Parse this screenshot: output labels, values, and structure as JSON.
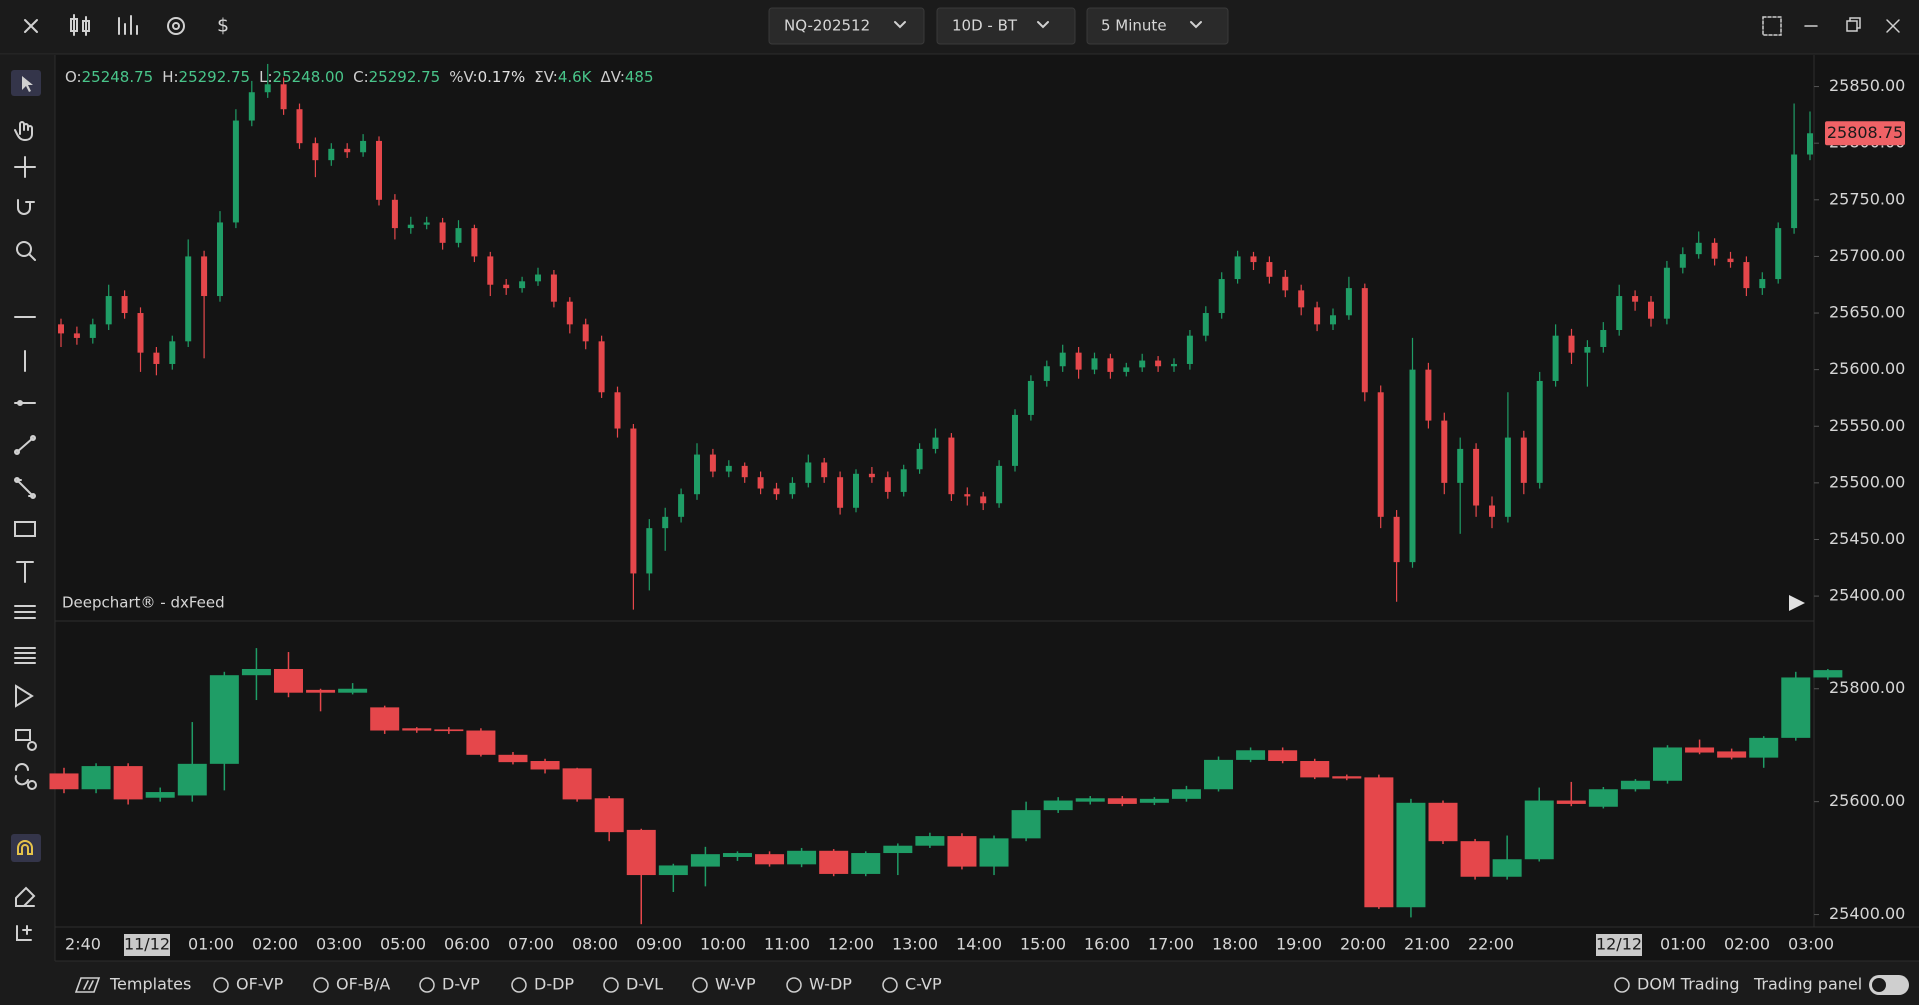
{
  "top_bar": {
    "dollar_icon": "$",
    "instrument": "NQ-202512",
    "range": "10D - BT",
    "interval": "5 Minute"
  },
  "legend_line": [
    {
      "label": "O:",
      "value": "25248.75"
    },
    {
      "label": "H:",
      "value": "25292.75"
    },
    {
      "label": "L:",
      "value": "25248.00"
    },
    {
      "label": "C:",
      "value": "25292.75"
    },
    {
      "label": "%V:",
      "value": "0.17%"
    },
    {
      "label": "ΣV:",
      "value": "4.6K"
    },
    {
      "label": "ΔV:",
      "value": "485"
    }
  ],
  "watermark": "Deepchart® - dxFeed",
  "chart_data": [
    {
      "type": "candlestick",
      "up_color": "#1f9d66",
      "down_color": "#e5474b",
      "ylim": [
        25378,
        25877
      ],
      "yticks": [
        {
          "value": 25400,
          "label": "25400.00"
        },
        {
          "value": 25450,
          "label": "25450.00"
        },
        {
          "value": 25500,
          "label": "25500.00"
        },
        {
          "value": 25550,
          "label": "25550.00"
        },
        {
          "value": 25600,
          "label": "25600.00"
        },
        {
          "value": 25650,
          "label": "25650.00"
        },
        {
          "value": 25700,
          "label": "25700.00"
        },
        {
          "value": 25750,
          "label": "25750.00"
        },
        {
          "value": 25800,
          "label": "25800.00"
        },
        {
          "value": 25850,
          "label": "25850.00"
        }
      ],
      "last_price": {
        "value": 25808.75,
        "label": "25808.75"
      },
      "candles": [
        [
          25640,
          25645,
          25620,
          25632
        ],
        [
          25632,
          25638,
          25622,
          25628
        ],
        [
          25628,
          25645,
          25623,
          25640
        ],
        [
          25640,
          25675,
          25635,
          25665
        ],
        [
          25665,
          25670,
          25645,
          25650
        ],
        [
          25650,
          25655,
          25598,
          25615
        ],
        [
          25615,
          25620,
          25595,
          25605
        ],
        [
          25605,
          25630,
          25600,
          25625
        ],
        [
          25625,
          25715,
          25620,
          25700
        ],
        [
          25700,
          25705,
          25610,
          25665
        ],
        [
          25665,
          25740,
          25660,
          25730
        ],
        [
          25730,
          25830,
          25725,
          25820
        ],
        [
          25820,
          25855,
          25815,
          25845
        ],
        [
          25845,
          25870,
          25840,
          25852
        ],
        [
          25852,
          25858,
          25825,
          25830
        ],
        [
          25830,
          25835,
          25795,
          25800
        ],
        [
          25800,
          25805,
          25770,
          25785
        ],
        [
          25785,
          25800,
          25780,
          25795
        ],
        [
          25795,
          25800,
          25787,
          25792
        ],
        [
          25792,
          25808,
          25788,
          25802
        ],
        [
          25802,
          25806,
          25745,
          25750
        ],
        [
          25750,
          25755,
          25715,
          25725
        ],
        [
          25725,
          25735,
          25720,
          25728
        ],
        [
          25728,
          25735,
          25724,
          25730
        ],
        [
          25730,
          25734,
          25706,
          25712
        ],
        [
          25712,
          25732,
          25708,
          25725
        ],
        [
          25725,
          25728,
          25695,
          25700
        ],
        [
          25700,
          25704,
          25665,
          25675
        ],
        [
          25675,
          25680,
          25666,
          25672
        ],
        [
          25672,
          25682,
          25668,
          25678
        ],
        [
          25678,
          25690,
          25674,
          25684
        ],
        [
          25684,
          25688,
          25655,
          25660
        ],
        [
          25660,
          25664,
          25632,
          25640
        ],
        [
          25640,
          25645,
          25618,
          25625
        ],
        [
          25625,
          25630,
          25575,
          25580
        ],
        [
          25580,
          25585,
          25540,
          25548
        ],
        [
          25548,
          25552,
          25388,
          25420
        ],
        [
          25420,
          25468,
          25405,
          25460
        ],
        [
          25460,
          25478,
          25440,
          25470
        ],
        [
          25470,
          25495,
          25465,
          25490
        ],
        [
          25490,
          25535,
          25485,
          25525
        ],
        [
          25525,
          25530,
          25505,
          25510
        ],
        [
          25510,
          25520,
          25505,
          25515
        ],
        [
          25515,
          25518,
          25500,
          25505
        ],
        [
          25505,
          25510,
          25490,
          25495
        ],
        [
          25495,
          25500,
          25485,
          25490
        ],
        [
          25490,
          25505,
          25486,
          25500
        ],
        [
          25500,
          25525,
          25496,
          25518
        ],
        [
          25518,
          25522,
          25500,
          25505
        ],
        [
          25505,
          25510,
          25472,
          25478
        ],
        [
          25478,
          25512,
          25474,
          25508
        ],
        [
          25508,
          25514,
          25500,
          25505
        ],
        [
          25505,
          25510,
          25486,
          25492
        ],
        [
          25492,
          25516,
          25488,
          25512
        ],
        [
          25512,
          25535,
          25508,
          25530
        ],
        [
          25530,
          25548,
          25526,
          25540
        ],
        [
          25540,
          25544,
          25484,
          25490
        ],
        [
          25490,
          25496,
          25480,
          25488
        ],
        [
          25488,
          25492,
          25476,
          25482
        ],
        [
          25482,
          25520,
          25478,
          25515
        ],
        [
          25515,
          25565,
          25510,
          25560
        ],
        [
          25560,
          25595,
          25555,
          25590
        ],
        [
          25590,
          25608,
          25585,
          25603
        ],
        [
          25603,
          25622,
          25598,
          25615
        ],
        [
          25615,
          25620,
          25592,
          25600
        ],
        [
          25600,
          25615,
          25596,
          25610
        ],
        [
          25610,
          25614,
          25592,
          25598
        ],
        [
          25598,
          25606,
          25594,
          25602
        ],
        [
          25602,
          25614,
          25598,
          25608
        ],
        [
          25608,
          25612,
          25598,
          25603
        ],
        [
          25603,
          25610,
          25598,
          25605
        ],
        [
          25605,
          25635,
          25600,
          25630
        ],
        [
          25630,
          25656,
          25625,
          25650
        ],
        [
          25650,
          25686,
          25645,
          25680
        ],
        [
          25680,
          25705,
          25676,
          25700
        ],
        [
          25700,
          25704,
          25688,
          25695
        ],
        [
          25695,
          25700,
          25676,
          25682
        ],
        [
          25682,
          25688,
          25664,
          25670
        ],
        [
          25670,
          25675,
          25648,
          25655
        ],
        [
          25655,
          25660,
          25634,
          25640
        ],
        [
          25640,
          25654,
          25635,
          25648
        ],
        [
          25648,
          25682,
          25644,
          25672
        ],
        [
          25672,
          25676,
          25572,
          25580
        ],
        [
          25580,
          25586,
          25460,
          25470
        ],
        [
          25470,
          25476,
          25395,
          25430
        ],
        [
          25430,
          25628,
          25425,
          25600
        ],
        [
          25600,
          25606,
          25548,
          25555
        ],
        [
          25555,
          25562,
          25490,
          25500
        ],
        [
          25500,
          25540,
          25455,
          25530
        ],
        [
          25530,
          25535,
          25470,
          25480
        ],
        [
          25480,
          25488,
          25460,
          25470
        ],
        [
          25470,
          25580,
          25465,
          25540
        ],
        [
          25540,
          25546,
          25490,
          25500
        ],
        [
          25500,
          25598,
          25495,
          25590
        ],
        [
          25590,
          25640,
          25585,
          25630
        ],
        [
          25630,
          25636,
          25605,
          25615
        ],
        [
          25615,
          25626,
          25585,
          25620
        ],
        [
          25620,
          25642,
          25615,
          25635
        ],
        [
          25635,
          25675,
          25630,
          25665
        ],
        [
          25665,
          25670,
          25652,
          25660
        ],
        [
          25660,
          25665,
          25638,
          25645
        ],
        [
          25645,
          25696,
          25640,
          25690
        ],
        [
          25690,
          25708,
          25685,
          25702
        ],
        [
          25702,
          25722,
          25698,
          25712
        ],
        [
          25712,
          25716,
          25692,
          25698
        ],
        [
          25698,
          25704,
          25690,
          25695
        ],
        [
          25695,
          25700,
          25665,
          25672
        ],
        [
          25672,
          25686,
          25666,
          25680
        ],
        [
          25680,
          25730,
          25676,
          25725
        ],
        [
          25725,
          25835,
          25720,
          25790
        ],
        [
          25790,
          25828,
          25785,
          25808.75
        ]
      ]
    },
    {
      "type": "candlestick",
      "up_color": "#1f9d66",
      "down_color": "#e5474b",
      "ylim": [
        25378,
        25920
      ],
      "yticks": [
        {
          "value": 25400,
          "label": "25400.00"
        },
        {
          "value": 25600,
          "label": "25600.00"
        },
        {
          "value": 25800,
          "label": "25800.00"
        }
      ],
      "candles": [
        [
          25650,
          25660,
          25615,
          25622
        ],
        [
          25622,
          25668,
          25615,
          25663
        ],
        [
          25663,
          25668,
          25595,
          25604
        ],
        [
          25607,
          25625,
          25600,
          25617
        ],
        [
          25611,
          25741,
          25600,
          25667
        ],
        [
          25667,
          25830,
          25620,
          25824
        ],
        [
          25824,
          25872,
          25780,
          25835
        ],
        [
          25835,
          25865,
          25785,
          25793
        ],
        [
          25798,
          25800,
          25760,
          25793
        ],
        [
          25793,
          25810,
          25790,
          25800
        ],
        [
          25767,
          25770,
          25720,
          25726
        ],
        [
          25730,
          25732,
          25722,
          25726
        ],
        [
          25728,
          25732,
          25720,
          25725
        ],
        [
          25726,
          25730,
          25680,
          25683
        ],
        [
          25683,
          25688,
          25666,
          25670
        ],
        [
          25672,
          25676,
          25650,
          25657
        ],
        [
          25659,
          25660,
          25600,
          25604
        ],
        [
          25606,
          25610,
          25530,
          25546
        ],
        [
          25550,
          25552,
          25383,
          25470
        ],
        [
          25470,
          25490,
          25440,
          25487
        ],
        [
          25485,
          25520,
          25450,
          25507
        ],
        [
          25502,
          25512,
          25495,
          25509
        ],
        [
          25507,
          25512,
          25485,
          25489
        ],
        [
          25489,
          25518,
          25484,
          25513
        ],
        [
          25513,
          25516,
          25468,
          25472
        ],
        [
          25472,
          25512,
          25468,
          25509
        ],
        [
          25509,
          25526,
          25470,
          25522
        ],
        [
          25522,
          25545,
          25518,
          25539
        ],
        [
          25539,
          25544,
          25480,
          25485
        ],
        [
          25485,
          25540,
          25470,
          25535
        ],
        [
          25535,
          25600,
          25530,
          25585
        ],
        [
          25585,
          25608,
          25580,
          25602
        ],
        [
          25600,
          25610,
          25595,
          25606
        ],
        [
          25606,
          25610,
          25592,
          25596
        ],
        [
          25598,
          25608,
          25594,
          25605
        ],
        [
          25605,
          25628,
          25600,
          25622
        ],
        [
          25622,
          25680,
          25618,
          25674
        ],
        [
          25674,
          25696,
          25670,
          25691
        ],
        [
          25691,
          25696,
          25668,
          25672
        ],
        [
          25672,
          25676,
          25640,
          25643
        ],
        [
          25645,
          25648,
          25638,
          25641
        ],
        [
          25643,
          25648,
          25410,
          25413
        ],
        [
          25413,
          25605,
          25395,
          25598
        ],
        [
          25598,
          25602,
          25525,
          25530
        ],
        [
          25530,
          25534,
          25462,
          25467
        ],
        [
          25467,
          25540,
          25462,
          25498
        ],
        [
          25498,
          25625,
          25494,
          25602
        ],
        [
          25602,
          25635,
          25592,
          25596
        ],
        [
          25591,
          25626,
          25588,
          25622
        ],
        [
          25622,
          25640,
          25618,
          25637
        ],
        [
          25637,
          25700,
          25632,
          25696
        ],
        [
          25696,
          25710,
          25684,
          25687
        ],
        [
          25689,
          25694,
          25675,
          25678
        ],
        [
          25678,
          25716,
          25660,
          25713
        ],
        [
          25713,
          25830,
          25708,
          25820
        ],
        [
          25820,
          25835,
          25816,
          25833
        ]
      ],
      "time_labels": [
        "2:40",
        "11/12",
        "01:00",
        "02:00",
        "03:00",
        "05:00",
        "06:00",
        "07:00",
        "08:00",
        "09:00",
        "10:00",
        "11:00",
        "12:00",
        "13:00",
        "14:00",
        "15:00",
        "16:00",
        "17:00",
        "18:00",
        "19:00",
        "20:00",
        "21:00",
        "22:00",
        null,
        "12/12",
        "01:00",
        "02:00",
        "03:00"
      ]
    }
  ],
  "bottom_bar": {
    "templates": "Templates",
    "studies": [
      "OF-VP",
      "OF-B/A",
      "D-VP",
      "D-DP",
      "D-VL",
      "W-VP",
      "W-DP",
      "C-VP"
    ],
    "dom_trading": "DOM Trading",
    "trading_panel": "Trading panel"
  }
}
